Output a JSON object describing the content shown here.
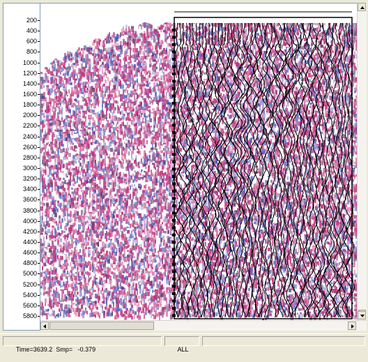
{
  "time_axis": {
    "ticks": [
      200,
      400,
      600,
      800,
      1000,
      1200,
      1400,
      1600,
      1800,
      2000,
      2200,
      2400,
      2600,
      2800,
      3000,
      3200,
      3400,
      3600,
      3800,
      4000,
      4200,
      4400,
      4600,
      4800,
      5000,
      5200,
      5400,
      5600,
      5800
    ],
    "min": 100,
    "max": 6050
  },
  "selection_marker": "r",
  "status_bar": {
    "time_text": "Time=3639.2",
    "sample_label": "Smp=",
    "sample_value": "-0.379",
    "mode": "ALL"
  },
  "colors": {
    "positive": "#c0307a",
    "negative": "#2a40b0",
    "wiggle": "#000000",
    "window_bg": "#ece9d8"
  },
  "icons": {
    "scroll_up": "triangle-up-icon",
    "scroll_down": "triangle-down-icon",
    "scroll_left": "triangle-left-icon",
    "scroll_right": "triangle-right-icon"
  }
}
